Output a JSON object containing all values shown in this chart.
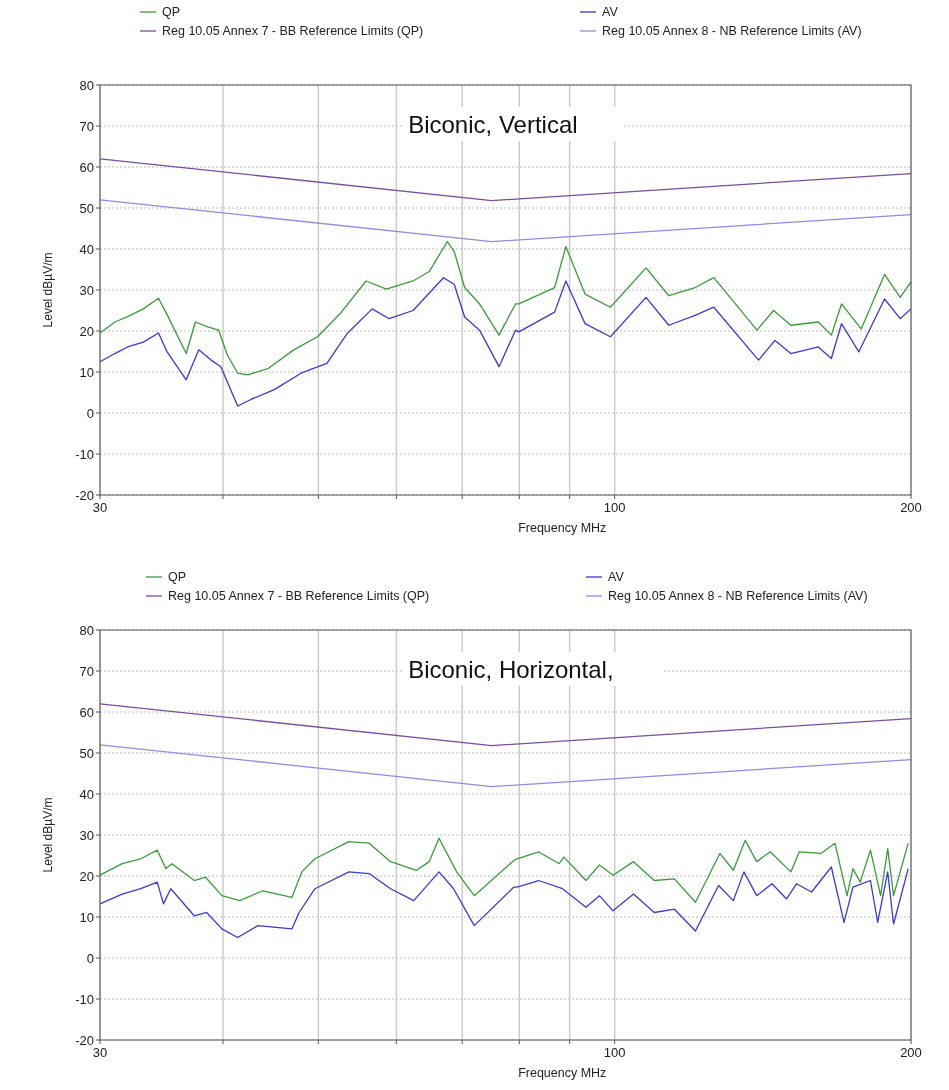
{
  "chart_data": [
    {
      "type": "line",
      "title": "Biconic, Vertical",
      "xlabel": "Frequency MHz",
      "ylabel": "Level dBµV/m",
      "log": "x",
      "xlim": [
        30,
        200
      ],
      "xticks": [
        30,
        {
          "value": 40,
          "label": null
        },
        {
          "value": 50,
          "label": null
        },
        {
          "value": 60,
          "label": null
        },
        {
          "value": 70,
          "label": null
        },
        {
          "value": 80,
          "label": null
        },
        {
          "value": 90,
          "label": null
        },
        100,
        200
      ],
      "ylim": [
        -20,
        80
      ],
      "yticks": [
        -20,
        -10,
        0,
        10,
        20,
        30,
        40,
        50,
        60,
        70,
        80
      ],
      "grid": true,
      "legend": "top",
      "line_style": "solid",
      "series": [
        {
          "name": "QP",
          "color": "#3c9a3c",
          "x": [
            30,
            31.06,
            32,
            33.2,
            34.4,
            35.1,
            36.7,
            37.5,
            38.6,
            39.6,
            40.4,
            41.4,
            42.4,
            44.5,
            47.2,
            49.9,
            52.6,
            55.9,
            58.6,
            62.4,
            64.8,
            67.6,
            68.7,
            70.4,
            72.9,
            76.3,
            79.3,
            79.9,
            86.9,
            89.2,
            93.3,
            99,
            107.6,
            113.5,
            120.7,
            126.1,
            139.5,
            145,
            151,
            161,
            166,
            170,
            178,
            188,
            195,
            200
          ],
          "values": [
            19.5,
            22.2,
            23.5,
            25.4,
            28,
            24,
            14.5,
            22.2,
            21,
            20.2,
            14.2,
            9.7,
            9.3,
            10.9,
            15.4,
            18.6,
            24.2,
            32.2,
            30.2,
            32.2,
            34.5,
            41.8,
            39.4,
            30.6,
            26.6,
            19,
            26.6,
            26.6,
            30.6,
            40.6,
            29,
            25.8,
            35.4,
            28.6,
            30.6,
            33,
            20.2,
            25,
            21.4,
            22.2,
            19,
            26.6,
            20.5,
            33.8,
            28.2,
            32
          ]
        },
        {
          "name": "AV",
          "color": "#3a3ad0",
          "x": [
            30,
            31.06,
            32,
            33.2,
            34.4,
            35.1,
            36.7,
            37.8,
            38.9,
            39.8,
            41.4,
            42.7,
            45.1,
            48,
            51,
            53.5,
            56.7,
            59,
            62.4,
            67,
            68.7,
            70.4,
            72.9,
            76.3,
            79.3,
            79.9,
            86.9,
            89.2,
            93.3,
            99,
            107.6,
            113.5,
            120.7,
            126.1,
            140,
            145.5,
            151,
            161,
            166,
            170,
            177,
            188,
            195,
            200
          ],
          "values": [
            12.5,
            14.5,
            16.1,
            17.3,
            19.5,
            14.9,
            8.1,
            15.4,
            12.9,
            11.3,
            1.7,
            3.3,
            5.7,
            9.7,
            12.1,
            19.4,
            25.4,
            23,
            25,
            33,
            31.4,
            23.4,
            20.2,
            11.3,
            20.2,
            19.8,
            24.6,
            32.2,
            21.8,
            18.6,
            28.2,
            21.4,
            23.8,
            25.8,
            12.9,
            17.7,
            14.5,
            16.1,
            13.3,
            21.8,
            14.9,
            27.8,
            23,
            25.4
          ]
        },
        {
          "name": "Reg 10.05 Annex 7 - BB Reference Limits (QP)",
          "color": "#7b4d9e",
          "x": [
            30,
            75,
            200
          ],
          "values": [
            62,
            51.8,
            58.4
          ]
        },
        {
          "name": "Reg 10.05 Annex 8 - NB Reference Limits (AV)",
          "color": "#8d8de6",
          "x": [
            30,
            75,
            200
          ],
          "values": [
            52,
            41.8,
            48.4
          ]
        }
      ]
    },
    {
      "type": "line",
      "title": "Biconic, Horizontal,",
      "xlabel": "Frequency MHz",
      "ylabel": "Level dBµV/m",
      "log": "x",
      "xlim": [
        30,
        200
      ],
      "xticks": [
        30,
        {
          "value": 40,
          "label": null
        },
        {
          "value": 50,
          "label": null
        },
        {
          "value": 60,
          "label": null
        },
        {
          "value": 70,
          "label": null
        },
        {
          "value": 80,
          "label": null
        },
        {
          "value": 90,
          "label": null
        },
        100,
        200
      ],
      "ylim": [
        -20,
        80
      ],
      "yticks": [
        -20,
        -10,
        0,
        10,
        20,
        30,
        40,
        50,
        60,
        70,
        80
      ],
      "grid": true,
      "legend": "top",
      "line_style": "solid",
      "series": [
        {
          "name": "QP",
          "color": "#3c9a3c",
          "x": [
            30,
            31.6,
            33,
            34.3,
            35,
            35.5,
            37.4,
            38.4,
            39.9,
            41.6,
            43.9,
            47,
            48.1,
            49.6,
            53.7,
            56.3,
            59.2,
            62.9,
            64.8,
            66.3,
            69.1,
            72,
            79,
            79.6,
            83.7,
            87.8,
            88.8,
            93.5,
            96.5,
            99.6,
            104.5,
            109.7,
            115,
            120.8,
            127.9,
            132,
            135.7,
            139.4,
            143.9,
            151,
            154,
            162,
            167.4,
            172.2,
            174.6,
            177.6,
            181.9,
            186.3,
            189.4,
            192,
            198.7
          ],
          "values": [
            20.2,
            23,
            24.2,
            26.3,
            21.8,
            23,
            18.9,
            19.7,
            15.2,
            14,
            16.4,
            14.8,
            21,
            24.2,
            28.4,
            28,
            23.5,
            21.4,
            23.5,
            29.2,
            21,
            15.2,
            23.8,
            24.2,
            25.9,
            23,
            24.6,
            18.9,
            22.7,
            20.2,
            23.5,
            18.9,
            19.3,
            13.6,
            25.5,
            21.4,
            28.7,
            23.5,
            25.9,
            21,
            25.9,
            25.5,
            28,
            15.2,
            21.8,
            18.5,
            26.3,
            15.2,
            26.7,
            15.2,
            28
          ]
        },
        {
          "name": "AV",
          "color": "#3a3ad0",
          "x": [
            30,
            31.6,
            33,
            34.3,
            34.8,
            35.4,
            37.4,
            38.5,
            39.9,
            41.4,
            43.4,
            47,
            47.8,
            49.6,
            53.7,
            56.3,
            59.2,
            62.5,
            66.3,
            68.6,
            72,
            79,
            79.6,
            83.7,
            88.5,
            93.5,
            96.5,
            99.6,
            104.5,
            109.7,
            115,
            120.8,
            127.5,
            132,
            135.3,
            139.4,
            144.5,
            149.5,
            153,
            158.5,
            166,
            171,
            174.6,
            181.9,
            185,
            189.4,
            192,
            198.7
          ],
          "values": [
            13.2,
            15.6,
            16.9,
            18.5,
            13.2,
            16.9,
            10.3,
            11.1,
            7.1,
            5,
            7.9,
            7.1,
            11.1,
            16.9,
            21,
            20.6,
            16.9,
            14,
            21,
            16.9,
            7.9,
            17.3,
            17.3,
            18.9,
            16.9,
            12.4,
            15.2,
            11.5,
            15.6,
            11.1,
            11.9,
            6.6,
            17.7,
            14,
            21,
            15.2,
            18.1,
            14.4,
            18.1,
            16.1,
            22.2,
            8.7,
            17.3,
            18.9,
            8.7,
            21,
            8.3,
            21.8
          ]
        },
        {
          "name": "Reg 10.05 Annex 7 - BB Reference Limits (QP)",
          "color": "#7b4d9e",
          "x": [
            30,
            75,
            200
          ],
          "values": [
            62,
            51.8,
            58.4
          ]
        },
        {
          "name": "Reg 10.05 Annex 8 - NB Reference Limits (AV)",
          "color": "#8d8de6",
          "x": [
            30,
            75,
            200
          ],
          "values": [
            52,
            41.8,
            48.4
          ]
        }
      ]
    }
  ]
}
